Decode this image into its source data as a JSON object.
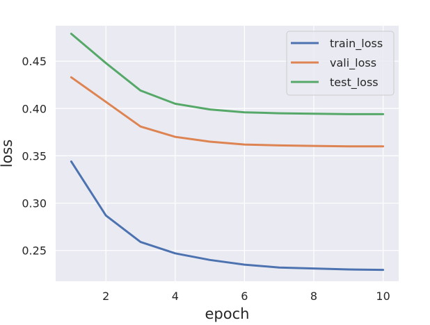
{
  "chart_data": {
    "type": "line",
    "xlabel": "epoch",
    "ylabel": "loss",
    "x": [
      1,
      2,
      3,
      4,
      5,
      6,
      7,
      8,
      9,
      10
    ],
    "xlim": [
      0.55,
      10.45
    ],
    "ylim": [
      0.2175,
      0.4875
    ],
    "xticks": [
      2,
      4,
      6,
      8,
      10
    ],
    "yticks": [
      0.25,
      0.3,
      0.35,
      0.4,
      0.45
    ],
    "xtick_labels": [
      "2",
      "4",
      "6",
      "8",
      "10"
    ],
    "ytick_labels": [
      "0.25",
      "0.30",
      "0.35",
      "0.40",
      "0.45"
    ],
    "grid": true,
    "legend_position": "top-right",
    "background_color": "#eaeaf2",
    "series": [
      {
        "name": "train_loss",
        "color": "#4c72b0",
        "values": [
          0.344,
          0.287,
          0.259,
          0.247,
          0.24,
          0.235,
          0.232,
          0.231,
          0.23,
          0.2295
        ]
      },
      {
        "name": "vali_loss",
        "color": "#dd8452",
        "values": [
          0.433,
          0.407,
          0.381,
          0.37,
          0.365,
          0.362,
          0.361,
          0.3605,
          0.36,
          0.36
        ]
      },
      {
        "name": "test_loss",
        "color": "#55a868",
        "values": [
          0.479,
          0.448,
          0.419,
          0.405,
          0.399,
          0.396,
          0.395,
          0.3945,
          0.394,
          0.394
        ]
      }
    ]
  }
}
